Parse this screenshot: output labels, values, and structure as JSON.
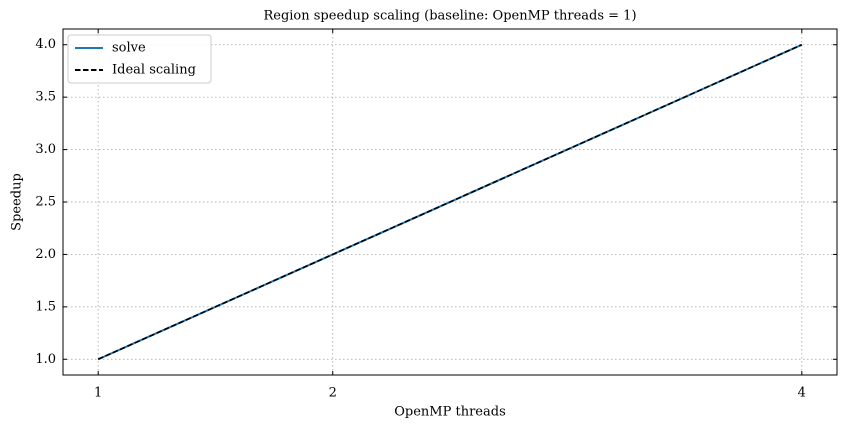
{
  "chart_data": {
    "type": "line",
    "title": "Region speedup scaling (baseline: OpenMP threads = 1)",
    "x_label": "OpenMP threads",
    "y_label": "Speedup",
    "x": [
      1,
      2,
      4
    ],
    "series": [
      {
        "name": "solve",
        "color": "#1f77b4",
        "linestyle": "solid",
        "values": [
          1,
          2,
          4
        ]
      },
      {
        "name": "Ideal scaling",
        "color": "#000000",
        "linestyle": "dashed",
        "values": [
          1,
          2,
          4
        ]
      }
    ],
    "xlim": [
      0.85,
      4.15
    ],
    "xticks": [
      1,
      2,
      4
    ],
    "ylim": [
      0.85,
      4.15
    ],
    "yticks": [
      {
        "value": 1,
        "label": "1.0"
      },
      {
        "value": 1.5,
        "label": "1.5"
      },
      {
        "value": 2,
        "label": "2.0"
      },
      {
        "value": 2.5,
        "label": "2.5"
      },
      {
        "value": 3,
        "label": "3.0"
      },
      {
        "value": 3.5,
        "label": "3.5"
      },
      {
        "value": 4,
        "label": "4.0"
      }
    ],
    "grid": true,
    "legend": "upper left"
  }
}
